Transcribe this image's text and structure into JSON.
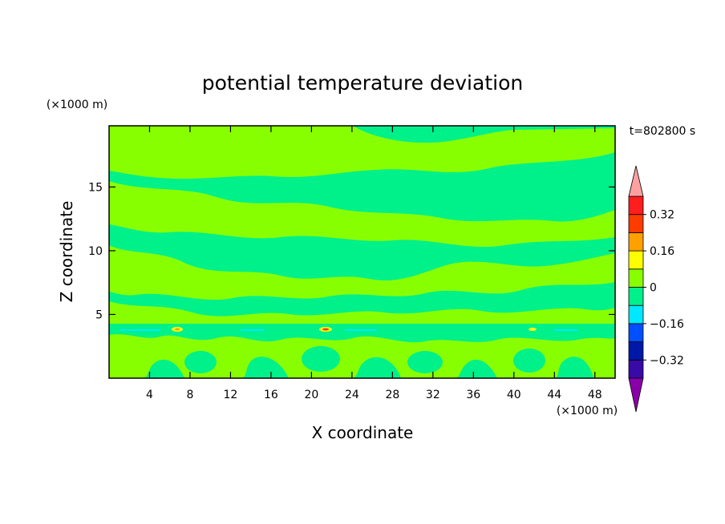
{
  "chart_data": {
    "type": "heatmap",
    "title": "potential temperature deviation",
    "xlabel": "X coordinate",
    "ylabel": "Z coordinate",
    "x_unit": "(×1000 m)",
    "z_unit": "(×1000 m)",
    "time_label": "t=802800 s",
    "xlim": [
      0,
      50
    ],
    "ylim": [
      0,
      19.8
    ],
    "x_ticks": [
      4,
      8,
      12,
      16,
      20,
      24,
      28,
      32,
      36,
      40,
      44,
      48
    ],
    "y_ticks": [
      5,
      10,
      15
    ],
    "colorbar": {
      "levels": [
        -0.4,
        -0.32,
        -0.24,
        -0.16,
        -0.08,
        0,
        0.08,
        0.16,
        0.24,
        0.32,
        0.4
      ],
      "colors": [
        "#8a00a8",
        "#3a0aa8",
        "#0018a8",
        "#0050ff",
        "#00e8ff",
        "#00f08a",
        "#88ff00",
        "#ffff00",
        "#ffa000",
        "#ff3c00",
        "#ff1e1e",
        "#ffa0a0"
      ],
      "tick_labels": [
        "0.32",
        "0.16",
        "0",
        "−0.16",
        "−0.32"
      ],
      "extend": "both"
    },
    "field_description": "Mostly near-zero deviation (green bands between -0.08 and 0.08) with small positive/negative anomalies near z≈3.8 km"
  }
}
